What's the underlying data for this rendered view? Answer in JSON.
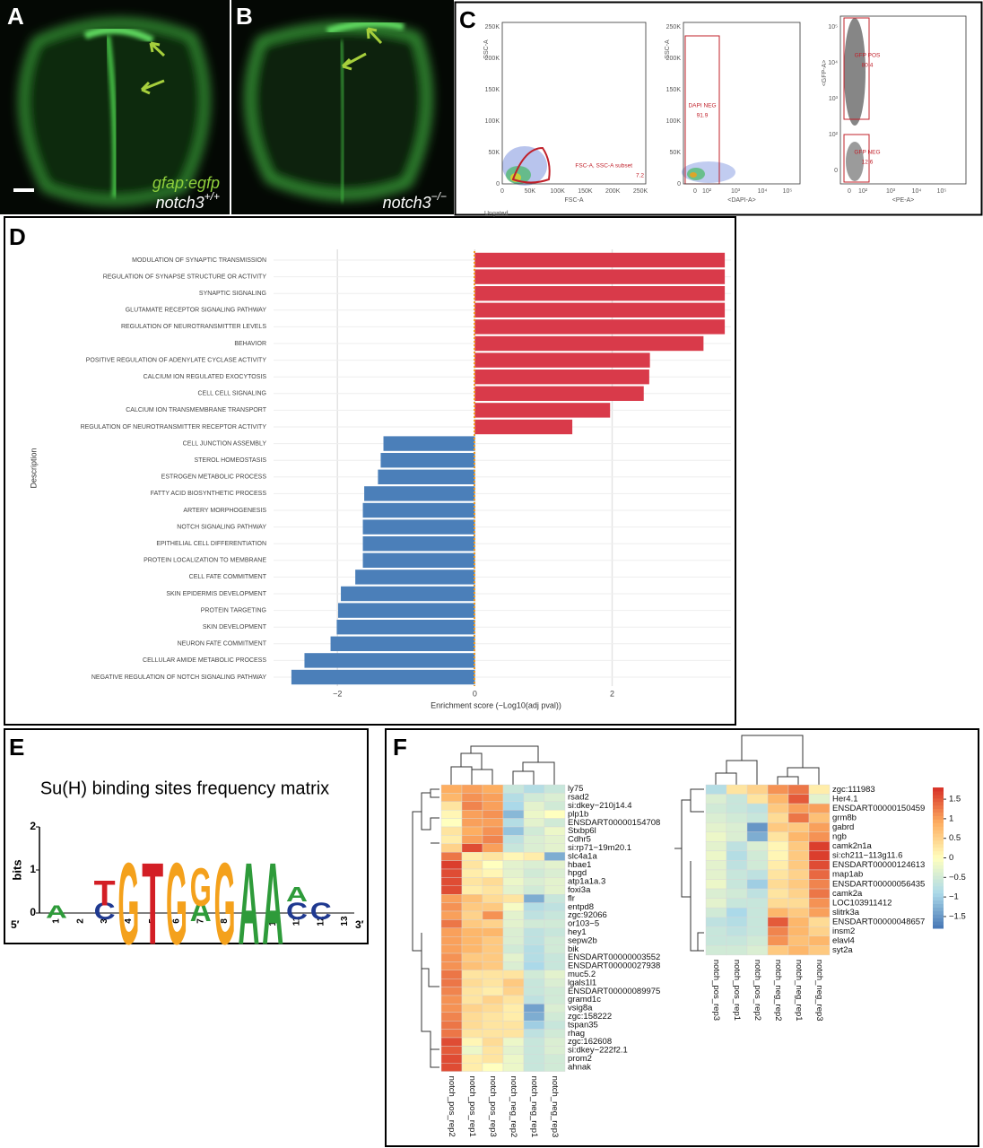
{
  "panel_labels": [
    "A",
    "B",
    "C",
    "D",
    "E",
    "F"
  ],
  "panel_a": {
    "transgene": "gfap:egfp",
    "genotype": "notch3",
    "genotype_sup": "+/+"
  },
  "panel_b": {
    "genotype": "notch3",
    "genotype_sup": "−/−"
  },
  "panel_c": {
    "plots": [
      {
        "y_label": "SSC-A",
        "x_label": "FSC-A",
        "yticks": [
          "250K",
          "200K",
          "150K",
          "100K",
          "50K",
          "0"
        ],
        "xticks": [
          "0",
          "50K",
          "100K",
          "150K",
          "200K",
          "250K"
        ],
        "gates": [
          {
            "name": "FSC-A, SSC-A subset",
            "percent": "7.2"
          }
        ],
        "footer": "Ungated"
      },
      {
        "y_label": "SSC-A",
        "x_label": "<DAPI-A>",
        "yticks": [
          "250K",
          "200K",
          "150K",
          "100K",
          "50K",
          "0"
        ],
        "xticks": [
          "0",
          "10²",
          "10³",
          "10⁴",
          "10⁵"
        ],
        "gates": [
          {
            "name": "DAPI NEG",
            "percent": "91.9"
          }
        ]
      },
      {
        "y_label": "<GFP-A>",
        "x_label": "<PE-A>",
        "yticks": [
          "10⁵",
          "10⁴",
          "10³",
          "10²",
          "0"
        ],
        "xticks": [
          "0",
          "10²",
          "10³",
          "10⁴",
          "10⁵"
        ],
        "gates": [
          {
            "name": "GFP POS",
            "percent": "80.4"
          },
          {
            "name": "GFP NEG",
            "percent": "12.6"
          }
        ]
      }
    ]
  },
  "chart_data": [
    {
      "type": "hbar",
      "x_label": "Enrichment score (−Log10(adj pval))",
      "y_label": "Description",
      "categories": [
        "MODULATION OF SYNAPTIC TRANSMISSION",
        "REGULATION OF SYNAPSE STRUCTURE OR ACTIVITY",
        "SYNAPTIC SIGNALING",
        "GLUTAMATE RECEPTOR SIGNALING PATHWAY",
        "REGULATION OF NEUROTRANSMITTER LEVELS",
        "BEHAVIOR",
        "POSITIVE REGULATION OF ADENYLATE CYCLASE ACTIVITY",
        "CALCIUM ION REGULATED EXOCYTOSIS",
        "CELL CELL SIGNALING",
        "CALCIUM ION TRANSMEMBRANE TRANSPORT",
        "REGULATION OF NEUROTRANSMITTER RECEPTOR ACTIVITY",
        "CELL JUNCTION ASSEMBLY",
        "STEROL HOMEOSTASIS",
        "ESTROGEN METABOLIC PROCESS",
        "FATTY ACID BIOSYNTHETIC PROCESS",
        "ARTERY MORPHOGENESIS",
        "NOTCH SIGNALING PATHWAY",
        "EPITHELIAL CELL DIFFERENTIATION",
        "PROTEIN LOCALIZATION TO MEMBRANE",
        "CELL FATE COMMITMENT",
        "SKIN EPIDERMIS DEVELOPMENT",
        "PROTEIN TARGETING",
        "SKIN DEVELOPMENT",
        "NEURON FATE COMMITMENT",
        "CELLULAR AMIDE METABOLIC PROCESS",
        "NEGATIVE REGULATION OF NOTCH SIGNALING PATHWAY"
      ],
      "values": [
        3.64,
        3.64,
        3.64,
        3.64,
        3.64,
        3.33,
        2.55,
        2.54,
        2.46,
        1.97,
        1.42,
        -1.33,
        -1.37,
        -1.41,
        -1.61,
        -1.63,
        -1.63,
        -1.63,
        -1.63,
        -1.74,
        -1.95,
        -1.99,
        -2.01,
        -2.1,
        -2.48,
        -2.67
      ],
      "color_positive": "#d93a4a",
      "color_negative": "#4b7fb9",
      "xlim": [
        -2.93,
        3.73
      ],
      "xticks": [
        {
          "value": -2,
          "label": "−2"
        },
        0,
        2
      ],
      "grid": true
    },
    {
      "type": "heatmap",
      "columns": [
        "notch_pos_rep2",
        "notch_pos_rep1",
        "notch_pos_rep3",
        "notch_neg_rep2",
        "notch_neg_rep1",
        "notch_neg_rep3"
      ],
      "rows": [
        "ly75",
        "rsad2",
        "si:dkey−210j14.4",
        "plp1b",
        "ENSDART00000154708",
        "Stxbp6l",
        "Cdhr5",
        "si:rp71−19m20.1",
        "slc4a1a",
        "hbae1",
        "hpgd",
        "atp1a1a.3",
        "foxi3a",
        "flr",
        "entpd8",
        "zgc:92066",
        "or103−5",
        "hey1",
        "sepw2b",
        "bik",
        "ENSDART00000003552",
        "ENSDART00000027938",
        "muc5.2",
        "lgals1l1",
        "ENSDART00000089975",
        "gramd1c",
        "vsig8a",
        "zgc:158222",
        "tspan35",
        "rhag",
        "zgc:162608",
        "si:dkey−222f2.1",
        "prom2",
        "ahnak"
      ],
      "values": [
        [
          0.9,
          1.0,
          0.9,
          -0.6,
          -0.8,
          -0.6
        ],
        [
          0.8,
          1.1,
          1.0,
          -0.8,
          -0.5,
          -0.4
        ],
        [
          0.3,
          1.2,
          1.0,
          -0.9,
          -0.3,
          -0.5
        ],
        [
          0.1,
          1.0,
          1.1,
          -1.2,
          -0.2,
          0.0
        ],
        [
          0.0,
          1.0,
          1.0,
          -0.8,
          -0.3,
          -0.5
        ],
        [
          0.3,
          0.9,
          1.1,
          -1.1,
          -0.5,
          -0.2
        ],
        [
          0.2,
          1.0,
          1.2,
          -0.7,
          -0.4,
          -0.3
        ],
        [
          0.5,
          1.6,
          1.0,
          -0.6,
          -0.4,
          -0.3
        ],
        [
          1.3,
          0.2,
          0.3,
          0.1,
          0.2,
          -1.3
        ],
        [
          1.7,
          0.3,
          0.0,
          -0.3,
          -0.4,
          -0.3
        ],
        [
          1.6,
          0.2,
          0.1,
          -0.3,
          -0.5,
          -0.4
        ],
        [
          1.6,
          0.3,
          0.4,
          -0.2,
          -0.4,
          -0.3
        ],
        [
          1.6,
          0.2,
          0.3,
          -0.3,
          -0.5,
          -0.3
        ],
        [
          1.0,
          0.7,
          0.4,
          0.3,
          -1.3,
          -0.6
        ],
        [
          1.1,
          0.6,
          0.6,
          -0.1,
          -0.8,
          -0.7
        ],
        [
          1.0,
          0.5,
          1.1,
          -0.3,
          -0.7,
          -0.6
        ],
        [
          1.3,
          0.6,
          0.5,
          -0.3,
          -0.5,
          -0.5
        ],
        [
          1.0,
          0.8,
          0.8,
          -0.4,
          -0.7,
          -0.6
        ],
        [
          1.0,
          0.8,
          0.6,
          -0.4,
          -0.7,
          -0.5
        ],
        [
          1.0,
          0.8,
          0.6,
          -0.5,
          -0.8,
          -0.5
        ],
        [
          1.1,
          0.6,
          0.6,
          -0.3,
          -0.8,
          -0.6
        ],
        [
          1.1,
          0.7,
          0.6,
          -0.4,
          -0.9,
          -0.6
        ],
        [
          1.3,
          0.3,
          0.3,
          0.3,
          -0.5,
          -0.3
        ],
        [
          1.3,
          0.4,
          0.3,
          0.6,
          -0.6,
          -0.4
        ],
        [
          1.2,
          0.3,
          0.2,
          0.5,
          -0.6,
          -0.5
        ],
        [
          1.1,
          0.3,
          0.5,
          0.3,
          -0.7,
          -0.5
        ],
        [
          1.1,
          0.5,
          0.4,
          0.2,
          -1.4,
          -0.4
        ],
        [
          1.2,
          0.4,
          0.3,
          0.2,
          -1.3,
          -0.5
        ],
        [
          1.3,
          0.4,
          0.3,
          0.3,
          -1.0,
          -0.6
        ],
        [
          1.3,
          0.3,
          0.3,
          0.3,
          -0.7,
          -0.5
        ],
        [
          1.6,
          0.1,
          0.4,
          -0.2,
          -0.6,
          -0.4
        ],
        [
          1.5,
          -0.2,
          0.3,
          -0.3,
          -0.6,
          -0.4
        ],
        [
          1.6,
          0.2,
          0.3,
          -0.2,
          -0.6,
          -0.5
        ],
        [
          1.6,
          0.2,
          0.0,
          -0.2,
          -0.6,
          -0.5
        ]
      ],
      "clim": [
        -1.8,
        1.8
      ]
    },
    {
      "type": "heatmap",
      "columns": [
        "notch_pos_rep3",
        "notch_pos_rep1",
        "notch_pos_rep2",
        "notch_neg_rep2",
        "notch_neg_rep1",
        "notch_neg_rep3"
      ],
      "rows": [
        "zgc:111983",
        "Her4.1",
        "ENSDART00000150459",
        "grm8b",
        "gabrd",
        "ngb",
        "camk2n1a",
        "si:ch211−113g11.6",
        "ENSDART00000124613",
        "map1ab",
        "ENSDART00000056435",
        "camk2a",
        "LOC103911412",
        "slitrk3a",
        "ENSDART00000048657",
        "insm2",
        "elavl4",
        "syt2a"
      ],
      "values": [
        [
          -0.8,
          0.3,
          0.5,
          1.1,
          1.3,
          0.2
        ],
        [
          -0.4,
          -0.6,
          0.3,
          0.8,
          1.5,
          -0.3
        ],
        [
          -0.5,
          -0.6,
          -0.7,
          0.6,
          1.0,
          1.0
        ],
        [
          -0.4,
          -0.5,
          -0.6,
          0.4,
          1.3,
          0.7
        ],
        [
          -0.3,
          -0.4,
          -1.5,
          0.6,
          0.6,
          1.0
        ],
        [
          -0.2,
          -0.4,
          -1.3,
          0.3,
          0.8,
          1.1
        ],
        [
          -0.3,
          -0.7,
          -0.4,
          0.1,
          0.6,
          1.7
        ],
        [
          -0.2,
          -0.8,
          -0.5,
          0.1,
          0.6,
          1.7
        ],
        [
          -0.3,
          -0.7,
          -0.5,
          0.2,
          0.6,
          1.6
        ],
        [
          -0.3,
          -0.6,
          -0.7,
          0.3,
          0.5,
          1.4
        ],
        [
          -0.2,
          -0.6,
          -1.0,
          0.4,
          0.6,
          1.2
        ],
        [
          -0.4,
          -0.5,
          -0.7,
          0.3,
          0.5,
          1.3
        ],
        [
          -0.3,
          -0.6,
          -0.6,
          0.4,
          0.4,
          1.1
        ],
        [
          -0.5,
          -0.9,
          -0.6,
          0.8,
          0.6,
          1.0
        ],
        [
          -0.7,
          -0.8,
          -0.6,
          1.5,
          0.8,
          0.4
        ],
        [
          -0.6,
          -0.7,
          -0.6,
          1.2,
          0.8,
          0.5
        ],
        [
          -0.6,
          -0.6,
          -0.5,
          1.1,
          0.7,
          0.8
        ],
        [
          -0.5,
          -0.5,
          -0.4,
          0.6,
          0.8,
          0.6
        ]
      ],
      "clim": [
        -1.8,
        1.8
      ],
      "colorbar_ticks": [
        1.5,
        1,
        0.5,
        0,
        {
          "value": -0.5,
          "label": "−0.5"
        },
        {
          "value": -1,
          "label": "−1"
        },
        {
          "value": -1.5,
          "label": "−1.5"
        }
      ]
    }
  ],
  "panel_e": {
    "title": "Su(H) binding sites frequency matrix",
    "y_label": "bits",
    "yticks": [
      "0",
      "1",
      "2"
    ],
    "start": "5′",
    "end": "3′",
    "letter_colors": {
      "A": "#2e9b3a",
      "C": "#1f3990",
      "G": "#f4a11c",
      "T": "#d31e25"
    },
    "positions": [
      {
        "label": "1",
        "letters": [
          {
            "letter": "A",
            "bits": 0.3
          }
        ]
      },
      {
        "label": "2",
        "letters": []
      },
      {
        "label": "3",
        "letters": [
          {
            "letter": "C",
            "bits": 0.4
          },
          {
            "letter": "T",
            "bits": 0.6
          }
        ]
      },
      {
        "label": "4",
        "letters": [
          {
            "letter": "G",
            "bits": 1.95
          }
        ]
      },
      {
        "label": "5",
        "letters": [
          {
            "letter": "T",
            "bits": 1.95
          }
        ]
      },
      {
        "label": "6",
        "letters": [
          {
            "letter": "G",
            "bits": 1.95
          }
        ]
      },
      {
        "label": "7",
        "letters": [
          {
            "letter": "A",
            "bits": 0.5
          },
          {
            "letter": "G",
            "bits": 0.9
          }
        ]
      },
      {
        "label": "8",
        "letters": [
          {
            "letter": "G",
            "bits": 1.95
          }
        ]
      },
      {
        "label": "9",
        "letters": [
          {
            "letter": "A",
            "bits": 1.95
          }
        ]
      },
      {
        "label": "10",
        "letters": [
          {
            "letter": "A",
            "bits": 1.95
          }
        ]
      },
      {
        "label": "11",
        "letters": [
          {
            "letter": "C",
            "bits": 0.4
          },
          {
            "letter": "A",
            "bits": 0.35
          }
        ]
      },
      {
        "label": "12",
        "letters": [
          {
            "letter": "C",
            "bits": 0.4
          }
        ]
      },
      {
        "label": "13",
        "letters": []
      }
    ]
  }
}
